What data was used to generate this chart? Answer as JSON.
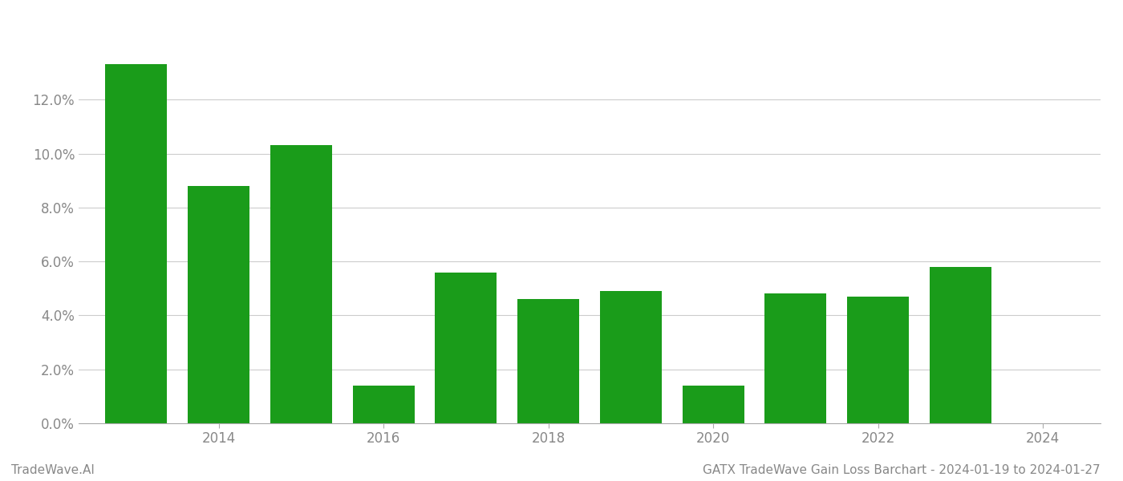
{
  "years": [
    2013,
    2014,
    2015,
    2016,
    2017,
    2018,
    2019,
    2020,
    2021,
    2022,
    2023
  ],
  "values": [
    0.133,
    0.088,
    0.103,
    0.014,
    0.056,
    0.046,
    0.049,
    0.014,
    0.048,
    0.047,
    0.058
  ],
  "bar_color": "#1a9c1a",
  "background_color": "#ffffff",
  "grid_color": "#cccccc",
  "ylabel_color": "#888888",
  "xlabel_color": "#888888",
  "title_text": "GATX TradeWave Gain Loss Barchart - 2024-01-19 to 2024-01-27",
  "watermark_text": "TradeWave.AI",
  "title_fontsize": 11,
  "watermark_fontsize": 11,
  "tick_fontsize": 12,
  "ylim": [
    0,
    0.148
  ],
  "yticks": [
    0.0,
    0.02,
    0.04,
    0.06,
    0.08,
    0.1,
    0.12
  ],
  "xtick_positions": [
    2014,
    2016,
    2018,
    2020,
    2022,
    2024
  ],
  "xlim": [
    2012.3,
    2024.7
  ],
  "bar_width": 0.75
}
